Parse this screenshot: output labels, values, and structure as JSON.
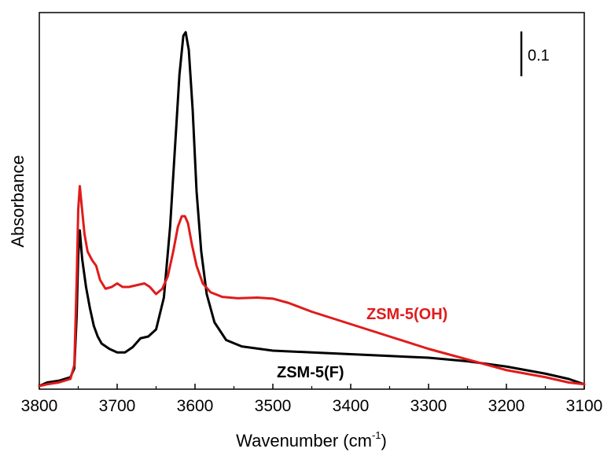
{
  "chart_data": {
    "type": "line",
    "xlabel": "Wavenumber (cm",
    "xlabel_sup": "-1",
    "xlabel_close": ")",
    "ylabel": "Absorbance",
    "xlim": [
      3800,
      3100
    ],
    "x_reversed": true,
    "ylim": [
      0,
      1.0
    ],
    "y_ticks_labeled": false,
    "x_ticks": [
      "3800",
      "3700",
      "3600",
      "3500",
      "3400",
      "3300",
      "3200",
      "3100"
    ],
    "x_tick_values": [
      3800,
      3700,
      3600,
      3500,
      3400,
      3300,
      3200,
      3100
    ],
    "grid": false,
    "scale_bar": {
      "label": "0.1",
      "value": 0.1
    },
    "series": [
      {
        "name": "ZSM-5(F)",
        "color": "#000000",
        "points": [
          [
            3800,
            0.0
          ],
          [
            3790,
            0.01
          ],
          [
            3775,
            0.015
          ],
          [
            3760,
            0.025
          ],
          [
            3755,
            0.05
          ],
          [
            3752,
            0.2
          ],
          [
            3750,
            0.37
          ],
          [
            3748,
            0.44
          ],
          [
            3745,
            0.36
          ],
          [
            3740,
            0.28
          ],
          [
            3735,
            0.22
          ],
          [
            3730,
            0.17
          ],
          [
            3725,
            0.14
          ],
          [
            3720,
            0.12
          ],
          [
            3710,
            0.105
          ],
          [
            3700,
            0.095
          ],
          [
            3690,
            0.095
          ],
          [
            3680,
            0.11
          ],
          [
            3670,
            0.135
          ],
          [
            3660,
            0.14
          ],
          [
            3650,
            0.16
          ],
          [
            3640,
            0.25
          ],
          [
            3632,
            0.45
          ],
          [
            3625,
            0.7
          ],
          [
            3620,
            0.88
          ],
          [
            3615,
            0.99
          ],
          [
            3612,
            1.0
          ],
          [
            3608,
            0.95
          ],
          [
            3603,
            0.78
          ],
          [
            3598,
            0.55
          ],
          [
            3592,
            0.38
          ],
          [
            3585,
            0.26
          ],
          [
            3575,
            0.18
          ],
          [
            3560,
            0.13
          ],
          [
            3540,
            0.112
          ],
          [
            3500,
            0.1
          ],
          [
            3450,
            0.095
          ],
          [
            3400,
            0.09
          ],
          [
            3350,
            0.085
          ],
          [
            3300,
            0.08
          ],
          [
            3250,
            0.07
          ],
          [
            3200,
            0.055
          ],
          [
            3150,
            0.035
          ],
          [
            3120,
            0.02
          ],
          [
            3100,
            0.005
          ]
        ]
      },
      {
        "name": "ZSM-5(OH)",
        "color": "#e01b1b",
        "points": [
          [
            3800,
            0.0
          ],
          [
            3790,
            0.005
          ],
          [
            3775,
            0.01
          ],
          [
            3760,
            0.02
          ],
          [
            3755,
            0.06
          ],
          [
            3752,
            0.3
          ],
          [
            3750,
            0.5
          ],
          [
            3748,
            0.565
          ],
          [
            3746,
            0.52
          ],
          [
            3742,
            0.43
          ],
          [
            3738,
            0.38
          ],
          [
            3732,
            0.355
          ],
          [
            3727,
            0.34
          ],
          [
            3722,
            0.3
          ],
          [
            3715,
            0.275
          ],
          [
            3707,
            0.28
          ],
          [
            3700,
            0.29
          ],
          [
            3693,
            0.28
          ],
          [
            3685,
            0.28
          ],
          [
            3675,
            0.285
          ],
          [
            3665,
            0.29
          ],
          [
            3658,
            0.28
          ],
          [
            3650,
            0.26
          ],
          [
            3642,
            0.275
          ],
          [
            3635,
            0.31
          ],
          [
            3628,
            0.38
          ],
          [
            3622,
            0.45
          ],
          [
            3617,
            0.48
          ],
          [
            3613,
            0.48
          ],
          [
            3609,
            0.46
          ],
          [
            3604,
            0.4
          ],
          [
            3598,
            0.34
          ],
          [
            3590,
            0.29
          ],
          [
            3580,
            0.265
          ],
          [
            3565,
            0.252
          ],
          [
            3545,
            0.248
          ],
          [
            3520,
            0.25
          ],
          [
            3500,
            0.247
          ],
          [
            3480,
            0.235
          ],
          [
            3450,
            0.21
          ],
          [
            3400,
            0.175
          ],
          [
            3350,
            0.14
          ],
          [
            3300,
            0.105
          ],
          [
            3250,
            0.075
          ],
          [
            3200,
            0.045
          ],
          [
            3150,
            0.025
          ],
          [
            3120,
            0.01
          ],
          [
            3100,
            0.005
          ]
        ]
      }
    ]
  }
}
